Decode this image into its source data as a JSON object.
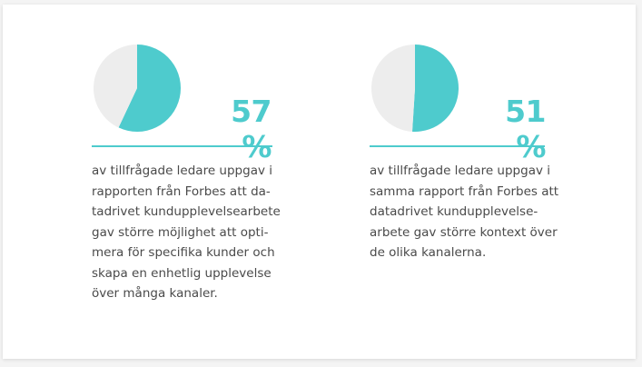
{
  "colors": {
    "accent": "#4ecbcd",
    "pie_rest": "#ededed",
    "text": "#4a4a4a"
  },
  "chart_data": [
    {
      "type": "pie",
      "values": [
        57,
        43
      ],
      "label": "57 %",
      "description": "av tillfrågade ledare uppgav i\nrapporten från Forbes att da-\ntadrivet kundupplevelsearbete\ngav större möjlighet att opti-\nmera för specifika kunder och\nskapa en enhetlig upplevelse\növer många kanaler."
    },
    {
      "type": "pie",
      "values": [
        51,
        49
      ],
      "label": "51 %",
      "description": "av tillfrågade ledare uppgav i\nsamma rapport från Forbes att\ndatadrivet kundupplevelse-\narbete gav större kontext över\nde olika kanalerna."
    }
  ]
}
